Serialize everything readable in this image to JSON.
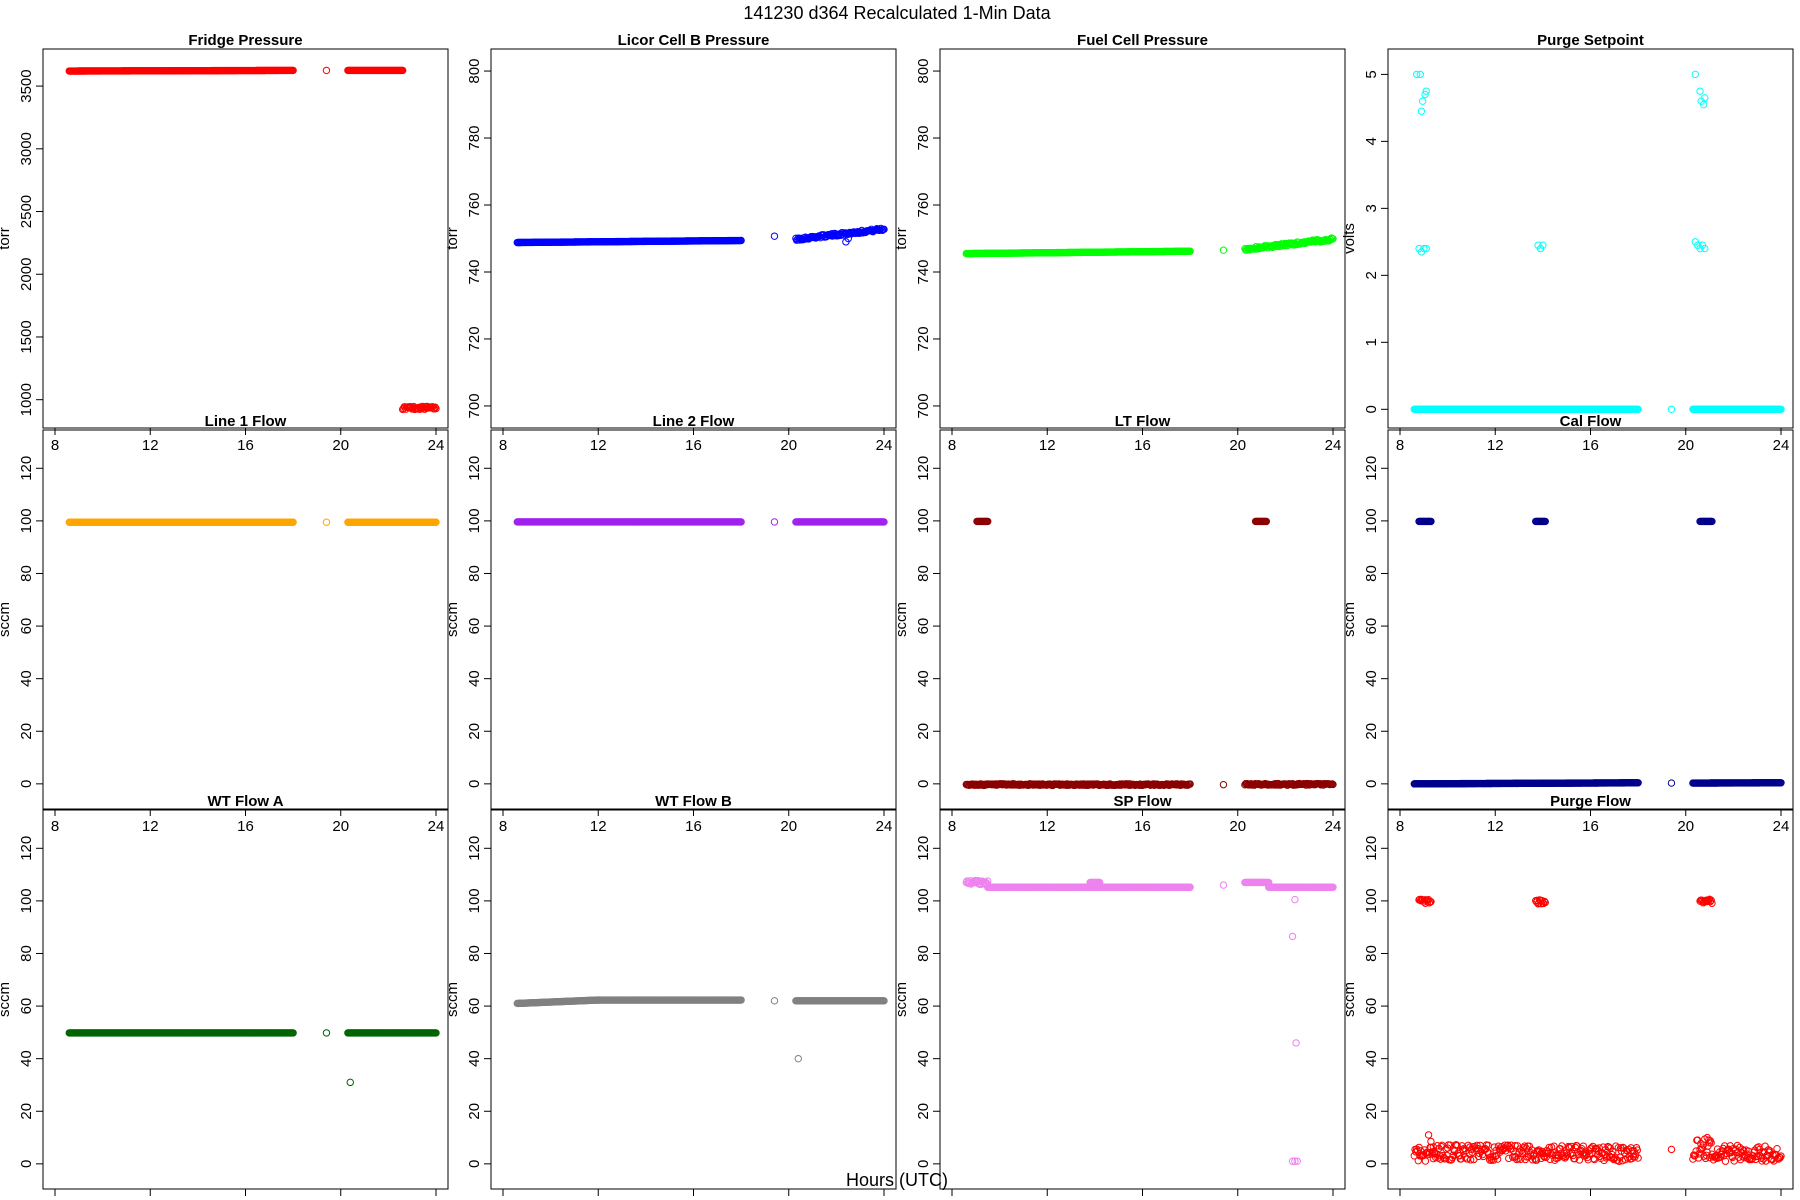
{
  "figure": {
    "title": "141230   d364   Recalculated 1-Min Data",
    "xlabel": "Hours (UTC)"
  },
  "chart_data": [
    {
      "type": "scatter",
      "title": "Fridge Pressure",
      "ylabel": "torr",
      "color": "#ff0000",
      "xlim": [
        8,
        24
      ],
      "xticks": [
        8,
        12,
        16,
        20,
        24
      ],
      "ylim": [
        870,
        3700
      ],
      "yticks": [
        1000,
        1500,
        2000,
        2500,
        3000,
        3500
      ],
      "segments": [
        {
          "x": [
            8.6,
            18.0
          ],
          "y": [
            3620,
            3625
          ]
        },
        {
          "x": [
            20.3,
            22.6
          ],
          "y": [
            3625,
            3625
          ]
        },
        {
          "x": [
            22.6,
            24.0
          ],
          "y": [
            935,
            935
          ],
          "jitter": 12
        }
      ],
      "points": [
        {
          "x": 19.4,
          "y": 3625
        }
      ]
    },
    {
      "type": "scatter",
      "title": "Licor Cell B Pressure",
      "ylabel": "torr",
      "color": "#0000ff",
      "xlim": [
        8,
        24
      ],
      "xticks": [
        8,
        12,
        16,
        20,
        24
      ],
      "ylim": [
        697,
        803
      ],
      "yticks": [
        700,
        720,
        740,
        760,
        780,
        800
      ],
      "segments": [
        {
          "x": [
            8.6,
            18.0
          ],
          "y": [
            748.8,
            749.4
          ]
        },
        {
          "x": [
            20.3,
            24.0
          ],
          "y": [
            749.8,
            752.8
          ],
          "jitter": 0.4
        }
      ],
      "points": [
        {
          "x": 19.4,
          "y": 750.7
        },
        {
          "x": 22.4,
          "y": 749.0
        },
        {
          "x": 22.5,
          "y": 750.0
        }
      ]
    },
    {
      "type": "scatter",
      "title": "Fuel Cell Pressure",
      "ylabel": "torr",
      "color": "#00ff00",
      "xlim": [
        8,
        24
      ],
      "xticks": [
        8,
        12,
        16,
        20,
        24
      ],
      "ylim": [
        697,
        803
      ],
      "yticks": [
        700,
        720,
        740,
        760,
        780,
        800
      ],
      "segments": [
        {
          "x": [
            8.6,
            18.0
          ],
          "y": [
            745.5,
            746.2
          ]
        },
        {
          "x": [
            20.3,
            24.0
          ],
          "y": [
            746.8,
            749.8
          ],
          "jitter": 0.4
        }
      ],
      "points": [
        {
          "x": 19.4,
          "y": 746.5
        }
      ]
    },
    {
      "type": "scatter",
      "title": "Purge Setpoint",
      "ylabel": "volts",
      "color": "#00ffff",
      "xlim": [
        8,
        24
      ],
      "xticks": [
        8,
        12,
        16,
        20,
        24
      ],
      "ylim": [
        -0.1,
        5.2
      ],
      "yticks": [
        0,
        1,
        2,
        3,
        4,
        5
      ],
      "segments": [
        {
          "x": [
            8.6,
            18.0
          ],
          "y": [
            0,
            0
          ]
        },
        {
          "x": [
            20.3,
            24.0
          ],
          "y": [
            0,
            0
          ]
        }
      ],
      "points": [
        {
          "x": 8.7,
          "y": 5.0
        },
        {
          "x": 8.85,
          "y": 5.0
        },
        {
          "x": 8.9,
          "y": 4.45
        },
        {
          "x": 8.95,
          "y": 4.6
        },
        {
          "x": 9.05,
          "y": 4.7
        },
        {
          "x": 9.1,
          "y": 4.75
        },
        {
          "x": 8.8,
          "y": 2.4
        },
        {
          "x": 8.9,
          "y": 2.35
        },
        {
          "x": 9.0,
          "y": 2.4
        },
        {
          "x": 9.1,
          "y": 2.4
        },
        {
          "x": 13.8,
          "y": 2.45
        },
        {
          "x": 13.9,
          "y": 2.4
        },
        {
          "x": 14.0,
          "y": 2.45
        },
        {
          "x": 19.4,
          "y": 0.0
        },
        {
          "x": 20.4,
          "y": 5.0
        },
        {
          "x": 20.6,
          "y": 4.75
        },
        {
          "x": 20.65,
          "y": 4.6
        },
        {
          "x": 20.75,
          "y": 4.55
        },
        {
          "x": 20.8,
          "y": 4.65
        },
        {
          "x": 20.4,
          "y": 2.5
        },
        {
          "x": 20.5,
          "y": 2.45
        },
        {
          "x": 20.6,
          "y": 2.4
        },
        {
          "x": 20.7,
          "y": 2.45
        },
        {
          "x": 20.8,
          "y": 2.4
        }
      ]
    },
    {
      "type": "scatter",
      "title": "Line 1 Flow",
      "ylabel": "sccm",
      "color": "#ffa500",
      "xlim": [
        8,
        24
      ],
      "xticks": [
        8,
        12,
        16,
        20,
        24
      ],
      "ylim": [
        -5,
        130
      ],
      "yticks": [
        0,
        20,
        40,
        60,
        80,
        100,
        120
      ],
      "segments": [
        {
          "x": [
            8.6,
            18.0
          ],
          "y": [
            99.5,
            99.5
          ]
        },
        {
          "x": [
            20.3,
            24.0
          ],
          "y": [
            99.5,
            99.5
          ]
        }
      ],
      "points": [
        {
          "x": 19.4,
          "y": 99.5
        }
      ]
    },
    {
      "type": "scatter",
      "title": "Line 2 Flow",
      "ylabel": "sccm",
      "color": "#a020f0",
      "xlim": [
        8,
        24
      ],
      "xticks": [
        8,
        12,
        16,
        20,
        24
      ],
      "ylim": [
        -5,
        130
      ],
      "yticks": [
        0,
        20,
        40,
        60,
        80,
        100,
        120
      ],
      "segments": [
        {
          "x": [
            8.6,
            18.0
          ],
          "y": [
            99.6,
            99.6
          ]
        },
        {
          "x": [
            20.3,
            24.0
          ],
          "y": [
            99.6,
            99.6
          ]
        }
      ],
      "points": [
        {
          "x": 19.4,
          "y": 99.6
        }
      ]
    },
    {
      "type": "scatter",
      "title": "LT Flow",
      "ylabel": "sccm",
      "color": "#8b0000",
      "xlim": [
        8,
        24
      ],
      "xticks": [
        8,
        12,
        16,
        20,
        24
      ],
      "ylim": [
        -5,
        130
      ],
      "yticks": [
        0,
        20,
        40,
        60,
        80,
        100,
        120
      ],
      "segments": [
        {
          "x": [
            8.6,
            18.0
          ],
          "y": [
            -0.3,
            -0.3
          ],
          "jitter": 0.3
        },
        {
          "x": [
            20.3,
            24.0
          ],
          "y": [
            -0.2,
            -0.2
          ],
          "jitter": 0.3
        },
        {
          "x": [
            9.05,
            9.5
          ],
          "y": [
            99.8,
            99.8
          ]
        },
        {
          "x": [
            20.75,
            21.2
          ],
          "y": [
            99.8,
            99.8
          ]
        }
      ],
      "points": [
        {
          "x": 19.4,
          "y": -0.3
        }
      ]
    },
    {
      "type": "scatter",
      "title": "Cal Flow",
      "ylabel": "sccm",
      "color": "#00008b",
      "xlim": [
        8,
        24
      ],
      "xticks": [
        8,
        12,
        16,
        20,
        24
      ],
      "ylim": [
        -5,
        130
      ],
      "yticks": [
        0,
        20,
        40,
        60,
        80,
        100,
        120
      ],
      "segments": [
        {
          "x": [
            8.6,
            18.0
          ],
          "y": [
            0.0,
            0.4
          ]
        },
        {
          "x": [
            20.3,
            24.0
          ],
          "y": [
            0.3,
            0.4
          ]
        },
        {
          "x": [
            8.8,
            9.3
          ],
          "y": [
            99.8,
            99.8
          ]
        },
        {
          "x": [
            13.7,
            14.1
          ],
          "y": [
            99.8,
            99.8
          ]
        },
        {
          "x": [
            20.6,
            21.1
          ],
          "y": [
            99.8,
            99.8
          ]
        }
      ],
      "points": [
        {
          "x": 19.4,
          "y": 0.3
        }
      ]
    },
    {
      "type": "scatter",
      "title": "WT Flow A",
      "ylabel": "sccm",
      "color": "#006400",
      "xlim": [
        8,
        24
      ],
      "xticks": [
        8,
        12,
        16,
        20,
        24
      ],
      "ylim": [
        -5,
        130
      ],
      "yticks": [
        0,
        20,
        40,
        60,
        80,
        100,
        120
      ],
      "segments": [
        {
          "x": [
            8.6,
            18.0
          ],
          "y": [
            49.8,
            49.8
          ]
        },
        {
          "x": [
            20.3,
            24.0
          ],
          "y": [
            49.8,
            49.8
          ]
        }
      ],
      "points": [
        {
          "x": 19.4,
          "y": 49.8
        },
        {
          "x": 20.4,
          "y": 31.0
        }
      ]
    },
    {
      "type": "scatter",
      "title": "WT Flow B",
      "ylabel": "sccm",
      "color": "#808080",
      "xlim": [
        8,
        24
      ],
      "xticks": [
        8,
        12,
        16,
        20,
        24
      ],
      "ylim": [
        -5,
        130
      ],
      "yticks": [
        0,
        20,
        40,
        60,
        80,
        100,
        120
      ],
      "segments": [
        {
          "x": [
            8.6,
            12.0
          ],
          "y": [
            61.0,
            62.3
          ]
        },
        {
          "x": [
            12.0,
            18.0
          ],
          "y": [
            62.3,
            62.3
          ]
        },
        {
          "x": [
            20.3,
            24.0
          ],
          "y": [
            62.0,
            62.0
          ]
        }
      ],
      "points": [
        {
          "x": 19.4,
          "y": 62.0
        },
        {
          "x": 20.4,
          "y": 40.0
        }
      ]
    },
    {
      "type": "scatter",
      "title": "SP Flow",
      "ylabel": "sccm",
      "color": "#ee82ee",
      "xlim": [
        8,
        24
      ],
      "xticks": [
        8,
        12,
        16,
        20,
        24
      ],
      "ylim": [
        -5,
        130
      ],
      "yticks": [
        0,
        20,
        40,
        60,
        80,
        100,
        120
      ],
      "segments": [
        {
          "x": [
            8.6,
            9.5
          ],
          "y": [
            107.0,
            107.0
          ],
          "jitter": 0.8
        },
        {
          "x": [
            9.5,
            18.0
          ],
          "y": [
            105.2,
            105.2
          ]
        },
        {
          "x": [
            13.8,
            14.2
          ],
          "y": [
            107.0,
            107.0
          ]
        },
        {
          "x": [
            20.3,
            21.3
          ],
          "y": [
            107.0,
            107.0
          ]
        },
        {
          "x": [
            21.3,
            24.0
          ],
          "y": [
            105.2,
            105.2
          ]
        }
      ],
      "points": [
        {
          "x": 19.4,
          "y": 106.0
        },
        {
          "x": 22.3,
          "y": 86.5
        },
        {
          "x": 22.4,
          "y": 100.5
        },
        {
          "x": 22.45,
          "y": 46.0
        },
        {
          "x": 22.3,
          "y": 1.0
        },
        {
          "x": 22.4,
          "y": 1.0
        },
        {
          "x": 22.5,
          "y": 1.0
        }
      ]
    },
    {
      "type": "scatter",
      "title": "Purge Flow",
      "ylabel": "sccm",
      "color": "#ff0000",
      "xlim": [
        8,
        24
      ],
      "xticks": [
        8,
        12,
        16,
        20,
        24
      ],
      "ylim": [
        -5,
        130
      ],
      "yticks": [
        0,
        20,
        40,
        60,
        80,
        100,
        120
      ],
      "segments": [
        {
          "x": [
            8.6,
            9.4
          ],
          "y": [
            4.0,
            4.0
          ],
          "jitter": 3
        },
        {
          "x": [
            9.4,
            18.0
          ],
          "y": [
            4.5,
            3.8
          ],
          "jitter": 3
        },
        {
          "x": [
            20.3,
            21.3
          ],
          "y": [
            5.5,
            5.5
          ],
          "jitter": 4
        },
        {
          "x": [
            21.3,
            24.0
          ],
          "y": [
            4.0,
            4.0
          ],
          "jitter": 3
        },
        {
          "x": [
            8.8,
            9.3
          ],
          "y": [
            99.8,
            99.8
          ],
          "jitter": 0.8
        },
        {
          "x": [
            13.7,
            14.1
          ],
          "y": [
            99.6,
            99.6
          ],
          "jitter": 0.8
        },
        {
          "x": [
            20.6,
            21.1
          ],
          "y": [
            99.8,
            99.8
          ],
          "jitter": 0.8
        }
      ],
      "points": [
        {
          "x": 19.4,
          "y": 5.5
        },
        {
          "x": 9.2,
          "y": 11.0
        },
        {
          "x": 9.3,
          "y": 8.5
        },
        {
          "x": 20.9,
          "y": 10.0
        },
        {
          "x": 21.0,
          "y": 8.0
        }
      ]
    }
  ]
}
